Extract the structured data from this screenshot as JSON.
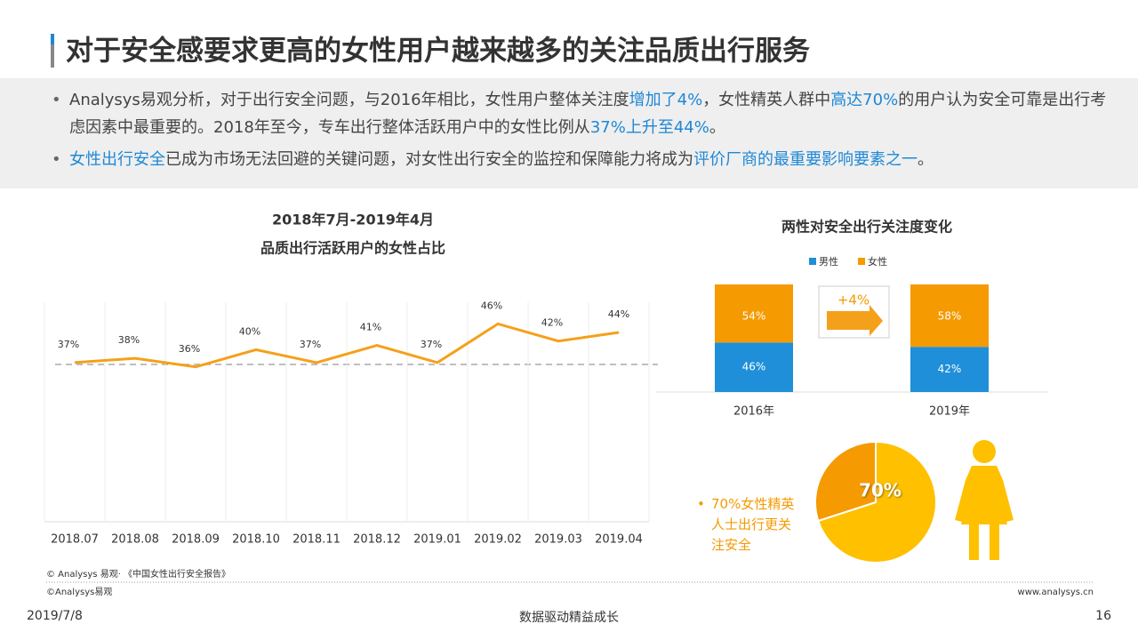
{
  "title": "对于安全感要求更高的女性用户越来越多的关注品质出行服务",
  "bullets": [
    {
      "parts": [
        {
          "text": "Analysys易观分析，对于出行安全问题，与2016年相比，女性用户整体关注度"
        },
        {
          "text": "增加了4%",
          "color": "#1e88d6"
        },
        {
          "text": "，女性精英人群中"
        },
        {
          "text": "高达70%",
          "color": "#1e88d6"
        },
        {
          "text": "的用户认为安全可靠是出行考虑因素中最重要的。2018年至今，专车出行整体活跃用户中的女性比例从"
        },
        {
          "text": "37%上升至44%",
          "color": "#1e88d6"
        },
        {
          "text": "。"
        }
      ]
    },
    {
      "parts": [
        {
          "text": "女性出行安全",
          "color": "#1e88d6"
        },
        {
          "text": "已成为市场无法回避的关键问题，对女性出行安全的监控和保障能力将成为"
        },
        {
          "text": "评价厂商的最重要影响要素之一",
          "color": "#1e88d6"
        },
        {
          "text": "。"
        }
      ]
    }
  ],
  "chart_data": [
    {
      "type": "line",
      "title": "2018年7月-2019年4月",
      "subtitle": "品质出行活跃用户的女性占比",
      "categories": [
        "2018.07",
        "2018.08",
        "2018.09",
        "2018.10",
        "2018.11",
        "2018.12",
        "2019.01",
        "2019.02",
        "2019.03",
        "2019.04"
      ],
      "values": [
        37,
        38,
        36,
        40,
        37,
        41,
        37,
        46,
        42,
        44
      ],
      "value_labels": [
        "37%",
        "38%",
        "36%",
        "40%",
        "37%",
        "41%",
        "37%",
        "46%",
        "42%",
        "44%"
      ],
      "color": "#f5a01a",
      "ylim": [
        0,
        50
      ]
    },
    {
      "type": "stacked-bar",
      "title": "两性对安全出行关注度变化",
      "categories": [
        "2016年",
        "2019年"
      ],
      "series": [
        {
          "name": "男性",
          "color": "#1e8fd8",
          "values": [
            46,
            42
          ],
          "value_labels": [
            "46%",
            "42%"
          ]
        },
        {
          "name": "女性",
          "color": "#f59a00",
          "values": [
            54,
            58
          ],
          "value_labels": [
            "54%",
            "58%"
          ]
        }
      ],
      "annotation": "+4%",
      "ylim": [
        0,
        100
      ],
      "legend": "top"
    },
    {
      "type": "pie",
      "values": [
        70,
        30
      ],
      "value_labels": [
        "70%",
        null
      ],
      "colors": [
        "#ffc000",
        "#f59a00"
      ],
      "annotation": "70%女性精英人士出行更关注安全"
    }
  ],
  "footer": {
    "source": "© Analysys 易观· 《中国女性出行安全报告》",
    "copyright": "©Analysys易观",
    "url": "www.analysys.cn",
    "date": "2019/7/8",
    "slogan": "数据驱动精益成长",
    "page": "16"
  }
}
